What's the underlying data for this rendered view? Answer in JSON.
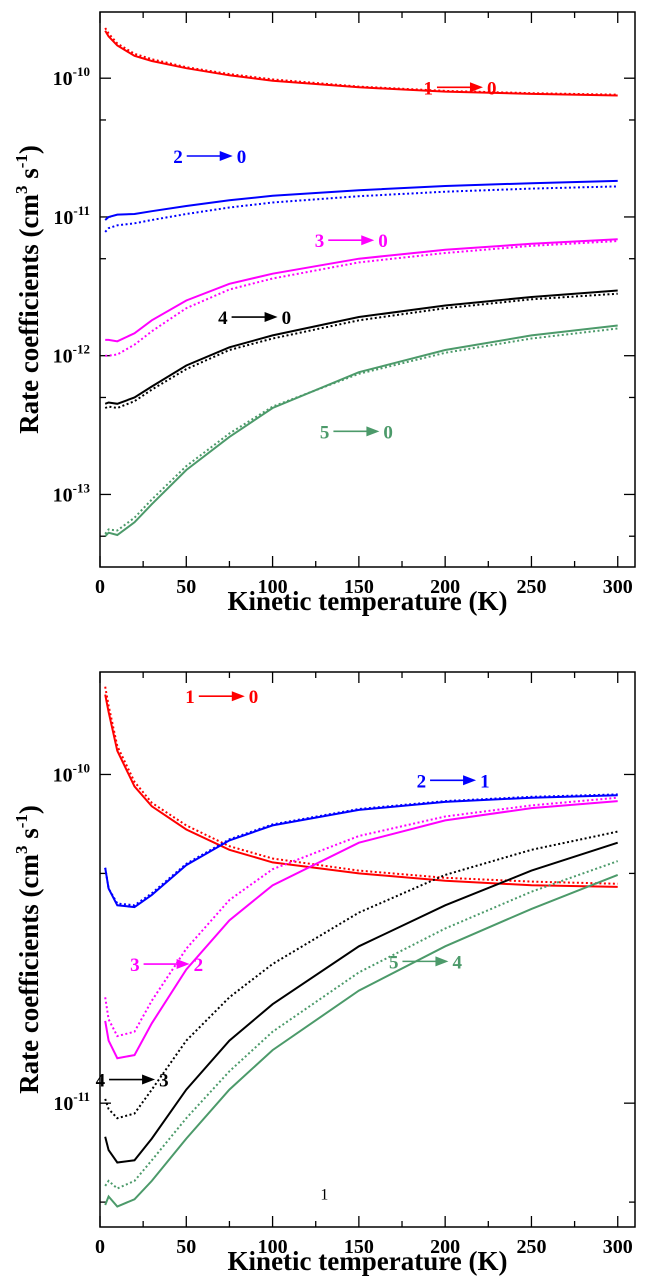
{
  "chart_data": [
    {
      "type": "line",
      "xlabel": "Kinetic temperature (K)",
      "ylabel": "Rate coefficients (cm3 s-1)",
      "ylabel_parts": {
        "main": "Rate coefficients (cm",
        "sup1": "3",
        "mid": " s",
        "sup2": "-1",
        "end": ")"
      },
      "xlim": [
        0,
        310
      ],
      "ylim": [
        3e-14,
        3e-10
      ],
      "yscale": "log",
      "xticks": [
        0,
        50,
        100,
        150,
        200,
        250,
        300
      ],
      "xtick_labels": [
        "0",
        "50",
        "100",
        "150",
        "200",
        "250",
        "300"
      ],
      "yticks": [
        1e-13,
        1e-12,
        1e-11,
        1e-10
      ],
      "ytick_labels": [
        {
          "base": "10",
          "exp": "-13"
        },
        {
          "base": "10",
          "exp": "-12"
        },
        {
          "base": "10",
          "exp": "-11"
        },
        {
          "base": "10",
          "exp": "-10"
        }
      ],
      "series": [
        {
          "from": "1",
          "to": "0",
          "color": "#ff0000",
          "label_at": [
            208,
            8.6e-11
          ],
          "x": [
            3,
            5,
            10,
            20,
            30,
            50,
            75,
            100,
            150,
            200,
            250,
            300
          ],
          "solid": [
            2.2e-10,
            2e-10,
            1.72e-10,
            1.45e-10,
            1.33e-10,
            1.18e-10,
            1.05e-10,
            9.6e-11,
            8.6e-11,
            8e-11,
            7.7e-11,
            7.5e-11
          ],
          "dotted": [
            2.3e-10,
            2.1e-10,
            1.78e-10,
            1.5e-10,
            1.37e-10,
            1.2e-10,
            1.07e-10,
            9.8e-11,
            8.7e-11,
            8.1e-11,
            7.8e-11,
            7.6e-11
          ]
        },
        {
          "from": "2",
          "to": "0",
          "color": "#0000ff",
          "label_at": [
            63,
            2.75e-11
          ],
          "x": [
            3,
            5,
            10,
            20,
            30,
            50,
            75,
            100,
            150,
            200,
            250,
            300
          ],
          "solid": [
            9.5e-12,
            1e-11,
            1.04e-11,
            1.05e-11,
            1.1e-11,
            1.2e-11,
            1.32e-11,
            1.42e-11,
            1.56e-11,
            1.67e-11,
            1.75e-11,
            1.82e-11
          ],
          "dotted": [
            7.8e-12,
            8.3e-12,
            8.7e-12,
            9e-12,
            9.5e-12,
            1.05e-11,
            1.17e-11,
            1.27e-11,
            1.41e-11,
            1.52e-11,
            1.6e-11,
            1.66e-11
          ]
        },
        {
          "from": "3",
          "to": "0",
          "color": "#ff00ff",
          "label_at": [
            145,
            6.8e-12
          ],
          "x": [
            3,
            5,
            10,
            20,
            30,
            50,
            75,
            100,
            150,
            200,
            250,
            300
          ],
          "solid": [
            1.3e-12,
            1.3e-12,
            1.27e-12,
            1.45e-12,
            1.8e-12,
            2.5e-12,
            3.3e-12,
            3.9e-12,
            5e-12,
            5.8e-12,
            6.4e-12,
            6.9e-12
          ],
          "dotted": [
            1e-12,
            1e-12,
            1.02e-12,
            1.2e-12,
            1.5e-12,
            2.2e-12,
            3e-12,
            3.6e-12,
            4.7e-12,
            5.5e-12,
            6.2e-12,
            6.7e-12
          ]
        },
        {
          "from": "4",
          "to": "0",
          "color": "#000000",
          "label_at": [
            89,
            1.9e-12
          ],
          "x": [
            3,
            5,
            10,
            20,
            30,
            50,
            75,
            100,
            150,
            200,
            250,
            300
          ],
          "solid": [
            4.5e-13,
            4.6e-13,
            4.5e-13,
            5e-13,
            6e-13,
            8.5e-13,
            1.15e-12,
            1.4e-12,
            1.9e-12,
            2.3e-12,
            2.65e-12,
            2.95e-12
          ],
          "dotted": [
            4.2e-13,
            4.3e-13,
            4.2e-13,
            4.7e-13,
            5.7e-13,
            8e-13,
            1.1e-12,
            1.33e-12,
            1.8e-12,
            2.2e-12,
            2.55e-12,
            2.8e-12
          ]
        },
        {
          "from": "5",
          "to": "0",
          "color": "#4c9a6a",
          "label_at": [
            148,
            2.85e-13
          ],
          "x": [
            3,
            5,
            10,
            20,
            30,
            50,
            75,
            100,
            150,
            200,
            250,
            300
          ],
          "solid": [
            5e-14,
            5.3e-14,
            5.1e-14,
            6.3e-14,
            8.5e-14,
            1.5e-13,
            2.6e-13,
            4.2e-13,
            7.6e-13,
            1.1e-12,
            1.4e-12,
            1.65e-12
          ],
          "dotted": [
            5.2e-14,
            5.6e-14,
            5.5e-14,
            6.8e-14,
            9.2e-14,
            1.6e-13,
            2.75e-13,
            4.3e-13,
            7.4e-13,
            1.05e-12,
            1.33e-12,
            1.57e-12
          ]
        }
      ]
    },
    {
      "type": "line",
      "xlabel": "Kinetic temperature (K)",
      "ylabel": "Rate coefficients (cm3 s-1)",
      "ylabel_parts": {
        "main": "Rate coefficients (cm",
        "sup1": "3",
        "mid": " s",
        "sup2": "-1",
        "end": ")"
      },
      "xlim": [
        0,
        310
      ],
      "ylim": [
        4.2e-12,
        2.05e-10
      ],
      "yscale": "log",
      "xticks": [
        0,
        50,
        100,
        150,
        200,
        250,
        300
      ],
      "xtick_labels": [
        "0",
        "50",
        "100",
        "150",
        "200",
        "250",
        "300"
      ],
      "yticks": [
        1e-11,
        1e-10
      ],
      "ytick_labels": [
        {
          "base": "10",
          "exp": "-11"
        },
        {
          "base": "10",
          "exp": "-10"
        }
      ],
      "annotation": "1",
      "series": [
        {
          "from": "1",
          "to": "0",
          "color": "#ff0000",
          "label_at": [
            70,
            1.73e-10
          ],
          "x": [
            3,
            5,
            10,
            20,
            30,
            50,
            75,
            100,
            150,
            200,
            250,
            300
          ],
          "solid": [
            1.75e-10,
            1.55e-10,
            1.18e-10,
            9.2e-11,
            8e-11,
            6.8e-11,
            5.9e-11,
            5.4e-11,
            5e-11,
            4.75e-11,
            4.6e-11,
            4.55e-11
          ],
          "dotted": [
            1.85e-10,
            1.62e-10,
            1.22e-10,
            9.5e-11,
            8.2e-11,
            7e-11,
            6.05e-11,
            5.55e-11,
            5.1e-11,
            4.85e-11,
            4.72e-11,
            4.65e-11
          ]
        },
        {
          "from": "2",
          "to": "1",
          "color": "#0000ff",
          "label_at": [
            204,
            9.6e-11
          ],
          "x": [
            3,
            5,
            10,
            20,
            30,
            50,
            75,
            100,
            150,
            200,
            250,
            300
          ],
          "solid": [
            5.2e-11,
            4.5e-11,
            4e-11,
            3.95e-11,
            4.3e-11,
            5.3e-11,
            6.3e-11,
            7e-11,
            7.8e-11,
            8.25e-11,
            8.5e-11,
            8.65e-11
          ],
          "dotted": [
            5.2e-11,
            4.5e-11,
            4.05e-11,
            4e-11,
            4.35e-11,
            5.35e-11,
            6.35e-11,
            7.05e-11,
            7.85e-11,
            8.3e-11,
            8.55e-11,
            8.7e-11
          ]
        },
        {
          "from": "3",
          "to": "2",
          "color": "#ff00ff",
          "label_at": [
            38,
            2.65e-11
          ],
          "x": [
            3,
            5,
            10,
            20,
            30,
            50,
            75,
            100,
            150,
            200,
            250,
            300
          ],
          "solid": [
            1.78e-11,
            1.55e-11,
            1.37e-11,
            1.4e-11,
            1.75e-11,
            2.55e-11,
            3.6e-11,
            4.6e-11,
            6.2e-11,
            7.25e-11,
            7.9e-11,
            8.3e-11
          ],
          "dotted": [
            2.1e-11,
            1.8e-11,
            1.6e-11,
            1.65e-11,
            2.05e-11,
            2.95e-11,
            4.15e-11,
            5.15e-11,
            6.5e-11,
            7.45e-11,
            8.05e-11,
            8.5e-11
          ]
        },
        {
          "from": "4",
          "to": "3",
          "color": "#000000",
          "label_at": [
            18,
            1.18e-11
          ],
          "x": [
            3,
            5,
            10,
            20,
            30,
            50,
            75,
            100,
            150,
            200,
            250,
            300
          ],
          "solid": [
            7.9e-12,
            7.2e-12,
            6.6e-12,
            6.7e-12,
            7.8e-12,
            1.1e-11,
            1.55e-11,
            2e-11,
            3e-11,
            4e-11,
            5.1e-11,
            6.2e-11
          ],
          "dotted": [
            1.03e-11,
            9.6e-12,
            9e-12,
            9.3e-12,
            1.1e-11,
            1.55e-11,
            2.1e-11,
            2.65e-11,
            3.8e-11,
            4.95e-11,
            5.9e-11,
            6.7e-11
          ]
        },
        {
          "from": "5",
          "to": "4",
          "color": "#4c9a6a",
          "label_at": [
            188,
            2.7e-11
          ],
          "x": [
            3,
            5,
            10,
            20,
            30,
            50,
            75,
            100,
            150,
            200,
            250,
            300
          ],
          "solid": [
            4.9e-12,
            5.2e-12,
            4.85e-12,
            5.1e-12,
            5.8e-12,
            7.8e-12,
            1.1e-11,
            1.45e-11,
            2.2e-11,
            3e-11,
            3.9e-11,
            4.95e-11
          ],
          "dotted": [
            5.6e-12,
            5.8e-12,
            5.5e-12,
            5.8e-12,
            6.7e-12,
            9e-12,
            1.25e-11,
            1.65e-11,
            2.5e-11,
            3.4e-11,
            4.4e-11,
            5.45e-11
          ]
        }
      ]
    }
  ]
}
